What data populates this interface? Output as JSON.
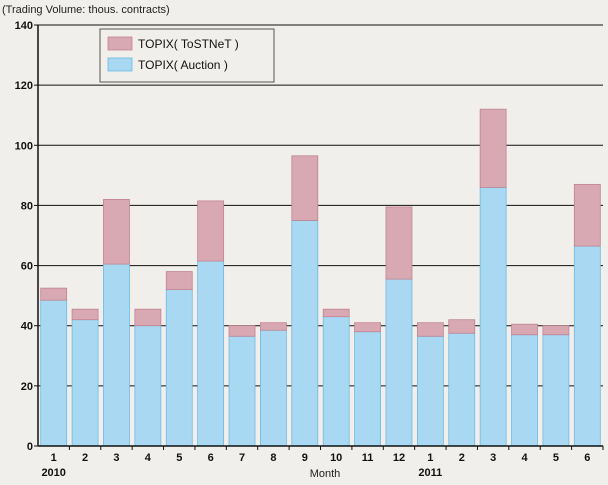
{
  "colors": {
    "background": "#f1efec",
    "plot_background": "#f1efec",
    "auction": "#a9d9f2",
    "auction_edge": "#6fb9e2",
    "tostnet": "#d9a9b3",
    "tostnet_edge": "#c08390",
    "grid": "#111111"
  },
  "chart_data": {
    "type": "bar",
    "stacked": true,
    "caption": "(Trading Volume: thous. contracts)",
    "xlabel": "Month",
    "ylabel": "",
    "ylim": [
      0,
      140
    ],
    "yticks": [
      0,
      20,
      40,
      60,
      80,
      100,
      120,
      140
    ],
    "grid": true,
    "legend_position": "top-left",
    "categories": [
      "1",
      "2",
      "3",
      "4",
      "5",
      "6",
      "7",
      "8",
      "9",
      "10",
      "11",
      "12",
      "1",
      "2",
      "3",
      "4",
      "5",
      "6"
    ],
    "year_labels": [
      {
        "label": "2010",
        "category_index": 0
      },
      {
        "label": "2011",
        "category_index": 12
      }
    ],
    "series": [
      {
        "name": "TOPIX( Auction )",
        "color": "#a9d9f2",
        "values": [
          48.5,
          42,
          60.5,
          40,
          52,
          61.5,
          36.5,
          38.5,
          75,
          43,
          38,
          55.5,
          36.5,
          37.5,
          86,
          37,
          37,
          66.5
        ]
      },
      {
        "name": "TOPIX( ToSTNeT )",
        "color": "#d9a9b3",
        "values": [
          4,
          3.5,
          21.5,
          5.5,
          6,
          20,
          3.5,
          2.5,
          21.5,
          2.5,
          3,
          24,
          4.5,
          4.5,
          26,
          3.5,
          3,
          20.5
        ]
      }
    ]
  }
}
